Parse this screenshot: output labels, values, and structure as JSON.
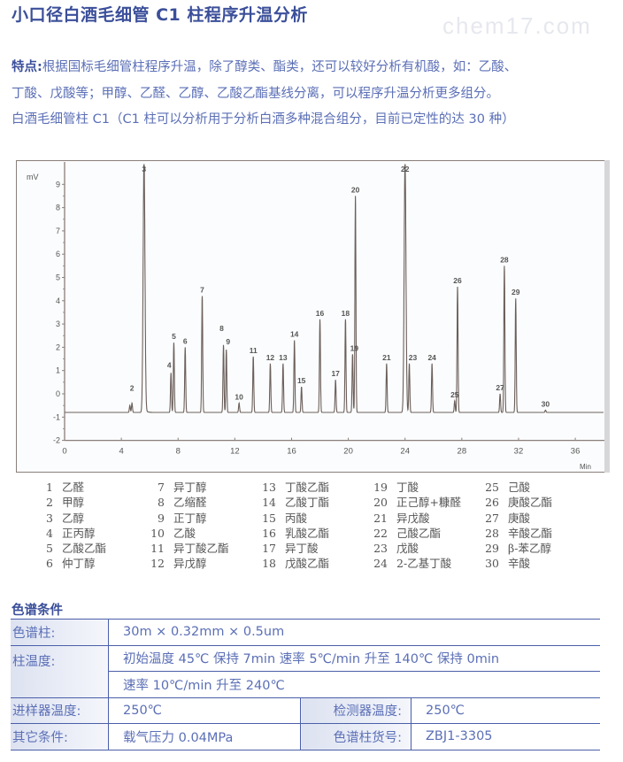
{
  "page": {
    "title": "小口径白酒毛细管 C1 柱程序升温分析",
    "watermark": "chem17.com",
    "features_label": "特点:",
    "features_line1": "根据国标毛细管柱程序升温，除了醇类、酯类，还可以较好分析有机酸，如：乙酸、",
    "features_line2": "丁酸、戊酸等；甲醇、乙醛、乙醇、乙酸乙酯基线分离，可以程序升温分析更多组分。",
    "features_line3": "白酒毛细管柱 C1（C1 柱可以分析用于分析白酒多种混合组分，目前已定性的达 30 种）"
  },
  "chart_data": {
    "type": "line",
    "title": "",
    "xlabel": "Min",
    "ylabel": "mV",
    "xlim": [
      0,
      38
    ],
    "ylim": [
      -2,
      10
    ],
    "x_ticks": [
      0,
      4,
      8,
      12,
      16,
      20,
      24,
      28,
      32,
      36
    ],
    "y_ticks": [
      -2,
      -1,
      0,
      1,
      2,
      3,
      4,
      5,
      6,
      7,
      8,
      9
    ],
    "grid": false,
    "baseline_mV": -0.8,
    "peaks": [
      {
        "id": "1",
        "rt": 4.6,
        "height_mV": -0.5
      },
      {
        "id": "2",
        "rt": 4.75,
        "height_mV": -0.4
      },
      {
        "id": "3",
        "rt": 5.6,
        "height_mV": 10.0,
        "off_scale": true
      },
      {
        "id": "4",
        "rt": 7.5,
        "height_mV": 0.9
      },
      {
        "id": "5",
        "rt": 7.7,
        "height_mV": 2.2
      },
      {
        "id": "6",
        "rt": 8.5,
        "height_mV": 2.0
      },
      {
        "id": "7",
        "rt": 9.7,
        "height_mV": 4.2
      },
      {
        "id": "8",
        "rt": 11.2,
        "height_mV": 2.1
      },
      {
        "id": "9",
        "rt": 11.4,
        "height_mV": 1.9
      },
      {
        "id": "10",
        "rt": 12.3,
        "height_mV": -0.4
      },
      {
        "id": "11",
        "rt": 13.3,
        "height_mV": 1.6
      },
      {
        "id": "12",
        "rt": 14.5,
        "height_mV": 1.3
      },
      {
        "id": "13",
        "rt": 15.4,
        "height_mV": 1.3
      },
      {
        "id": "14",
        "rt": 16.2,
        "height_mV": 2.3
      },
      {
        "id": "15",
        "rt": 16.7,
        "height_mV": 0.3
      },
      {
        "id": "16",
        "rt": 18.0,
        "height_mV": 3.2
      },
      {
        "id": "17",
        "rt": 19.1,
        "height_mV": 0.6
      },
      {
        "id": "18",
        "rt": 19.8,
        "height_mV": 3.2
      },
      {
        "id": "19",
        "rt": 20.3,
        "height_mV": 1.7
      },
      {
        "id": "20",
        "rt": 20.5,
        "height_mV": 8.5
      },
      {
        "id": "21",
        "rt": 22.7,
        "height_mV": 1.3
      },
      {
        "id": "22",
        "rt": 24.0,
        "height_mV": 10.0,
        "off_scale": true
      },
      {
        "id": "23",
        "rt": 24.3,
        "height_mV": 1.3
      },
      {
        "id": "24",
        "rt": 25.9,
        "height_mV": 1.3
      },
      {
        "id": "25",
        "rt": 27.5,
        "height_mV": -0.3
      },
      {
        "id": "26",
        "rt": 27.7,
        "height_mV": 4.6
      },
      {
        "id": "27",
        "rt": 30.7,
        "height_mV": 0.0
      },
      {
        "id": "28",
        "rt": 31.0,
        "height_mV": 5.5
      },
      {
        "id": "29",
        "rt": 31.8,
        "height_mV": 4.1
      },
      {
        "id": "30",
        "rt": 33.9,
        "height_mV": -0.7
      }
    ]
  },
  "legend": [
    [
      {
        "num": "1",
        "name": "乙醛"
      },
      {
        "num": "2",
        "name": "甲醇"
      },
      {
        "num": "3",
        "name": "乙醇"
      },
      {
        "num": "4",
        "name": "正丙醇"
      },
      {
        "num": "5",
        "name": "乙酸乙酯"
      },
      {
        "num": "6",
        "name": "仲丁醇"
      }
    ],
    [
      {
        "num": "7",
        "name": "异丁醇"
      },
      {
        "num": "8",
        "name": "乙缩醛"
      },
      {
        "num": "9",
        "name": "正丁醇"
      },
      {
        "num": "10",
        "name": "乙酸"
      },
      {
        "num": "11",
        "name": "异丁酸乙酯"
      },
      {
        "num": "12",
        "name": "异戊醇"
      }
    ],
    [
      {
        "num": "13",
        "name": "丁酸乙酯"
      },
      {
        "num": "14",
        "name": "乙酸丁酯"
      },
      {
        "num": "15",
        "name": "丙酸"
      },
      {
        "num": "16",
        "name": "乳酸乙酯"
      },
      {
        "num": "17",
        "name": "异丁酸"
      },
      {
        "num": "18",
        "name": "戊酸乙酯"
      }
    ],
    [
      {
        "num": "19",
        "name": "丁酸"
      },
      {
        "num": "20",
        "name": "正己醇+糠醛"
      },
      {
        "num": "21",
        "name": "异戊酸"
      },
      {
        "num": "22",
        "name": "己酸乙酯"
      },
      {
        "num": "23",
        "name": "戊酸"
      },
      {
        "num": "24",
        "name": "2-乙基丁酸"
      }
    ],
    [
      {
        "num": "25",
        "name": "己酸"
      },
      {
        "num": "26",
        "name": "庚酸乙酯"
      },
      {
        "num": "27",
        "name": "庚酸"
      },
      {
        "num": "28",
        "name": "辛酸乙酯"
      },
      {
        "num": "29",
        "name": "β-苯乙醇"
      },
      {
        "num": "30",
        "name": "辛酸"
      }
    ]
  ],
  "conditions": {
    "title": "色谱条件",
    "column_label": "色谱柱:",
    "column_value": "30m × 0.32mm × 0.5um",
    "temp_label": "柱温度:",
    "temp_value_1": "初始温度 45℃ 保持 7min 速率  5℃/min 升至 140℃ 保持 0min",
    "temp_value_2": "速率 10℃/min 升至 240℃",
    "injector_label": "进样器温度:",
    "injector_value": "250℃",
    "detector_label": "检测器温度:",
    "detector_value": "250℃",
    "other_label": "其它条件:",
    "other_value": "载气压力 0.04MPa",
    "catalog_label": "色谱柱货号:",
    "catalog_value": "ZBJ1-3305"
  },
  "colors": {
    "title": "#3b4f9a",
    "text": "#5b6fb6",
    "table_rule": "#4a5fa8",
    "trace": "#6b5f5a"
  }
}
